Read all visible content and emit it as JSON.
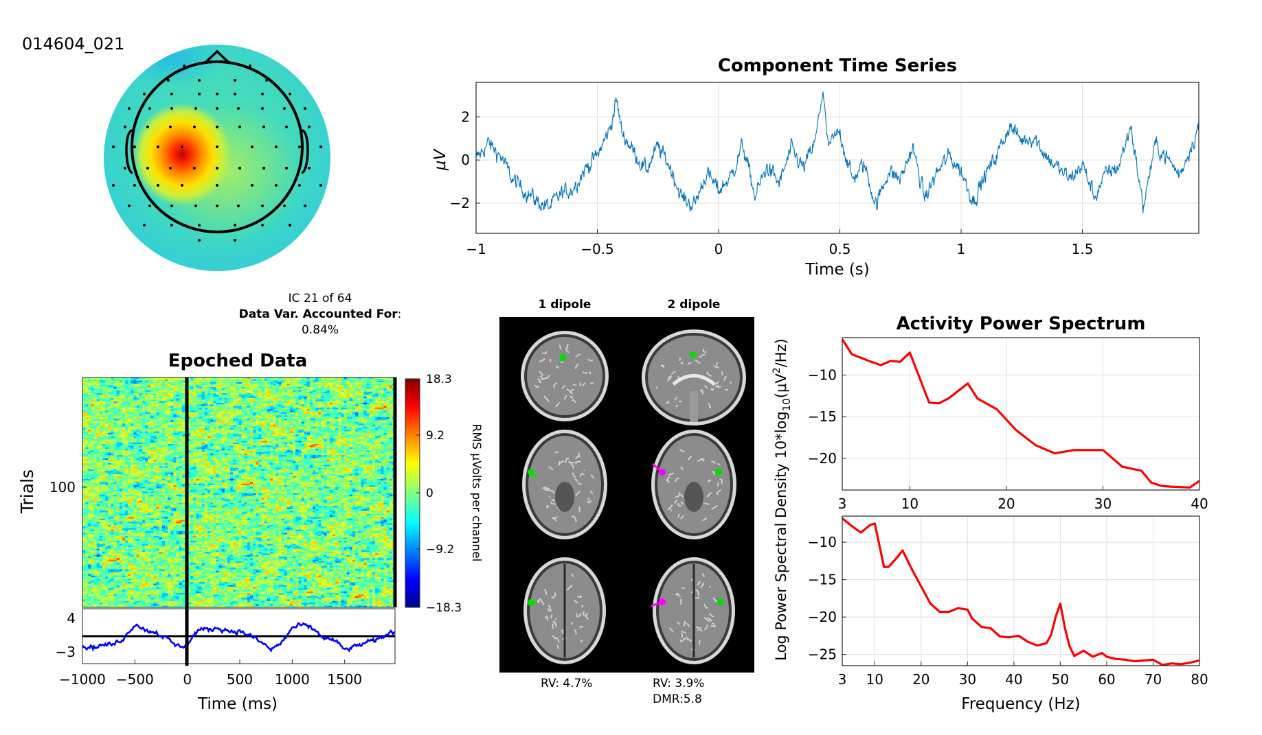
{
  "component_id": "014604_021",
  "ic_info": {
    "line1": "IC 21 of 64",
    "line2_bold": "Data Var. Accounted For",
    "line2_colon": ":",
    "line3": "0.84%"
  },
  "colors": {
    "time_series_line": "#0072bd",
    "erp_line": "#0000ff",
    "spectrum_line": "#ff0000",
    "dipole_1": "#00e000",
    "dipole_2": "#ff00ff"
  },
  "dipoles": {
    "col1_title": "1 dipole",
    "col2_title": "2 dipole",
    "rv1": "RV: 4.7%",
    "rv2": "RV: 3.9%",
    "dmr2": "DMR:5.8"
  },
  "shared_ylabel": "Log Power Spectral Density 10*log",
  "shared_ylabel_sub": "10",
  "shared_ylabel_tail_a": "(μV",
  "shared_ylabel_sup": "2",
  "shared_ylabel_tail_b": "/Hz)",
  "chart_data": [
    {
      "type": "line",
      "title": "Component Time Series",
      "xlabel": "Time (s)",
      "ylabel": "μV",
      "xlim": [
        -1,
        1.98
      ],
      "ylim": [
        -3.4,
        3.6
      ],
      "xticks": [
        -1,
        -0.5,
        0,
        0.5,
        1,
        1.5
      ],
      "xticklabels": [
        "−1",
        "−0.5",
        "0",
        "0.5",
        "1",
        "1.5"
      ],
      "yticks": [
        2,
        0,
        -2
      ],
      "yticklabels": [
        "2",
        "0",
        "−2"
      ],
      "grid": true,
      "x": [
        -1.0,
        -0.95,
        -0.9,
        -0.85,
        -0.8,
        -0.75,
        -0.7,
        -0.65,
        -0.6,
        -0.55,
        -0.5,
        -0.45,
        -0.42,
        -0.4,
        -0.35,
        -0.3,
        -0.25,
        -0.2,
        -0.15,
        -0.1,
        -0.05,
        0.0,
        0.05,
        0.1,
        0.15,
        0.2,
        0.25,
        0.3,
        0.35,
        0.4,
        0.43,
        0.45,
        0.5,
        0.55,
        0.6,
        0.65,
        0.7,
        0.75,
        0.8,
        0.85,
        0.9,
        0.95,
        1.0,
        1.05,
        1.1,
        1.15,
        1.2,
        1.25,
        1.3,
        1.35,
        1.4,
        1.45,
        1.5,
        1.55,
        1.6,
        1.65,
        1.7,
        1.75,
        1.8,
        1.85,
        1.9,
        1.95,
        1.98
      ],
      "y": [
        0.0,
        0.8,
        0.2,
        -0.9,
        -1.4,
        -1.9,
        -2.2,
        -1.6,
        -1.3,
        -0.4,
        0.2,
        1.4,
        2.8,
        1.3,
        0.4,
        -0.5,
        0.6,
        -0.3,
        -1.8,
        -2.1,
        -0.6,
        -1.4,
        -0.8,
        0.7,
        -1.7,
        -0.3,
        -1.1,
        0.5,
        -0.4,
        0.9,
        3.3,
        0.6,
        1.3,
        -0.9,
        -0.2,
        -2.1,
        -0.5,
        -0.9,
        0.6,
        -1.8,
        -0.6,
        0.2,
        -0.5,
        -1.9,
        -0.7,
        0.3,
        1.6,
        0.9,
        1.1,
        0.2,
        -0.4,
        -0.9,
        -0.2,
        -1.7,
        -0.6,
        -0.3,
        1.6,
        -2.2,
        0.7,
        0.1,
        -0.7,
        0.7,
        1.6
      ]
    },
    {
      "type": "heatmap",
      "title": "Epoched Data",
      "xlabel": "Time (ms)",
      "ylabel": "Trials",
      "xlim": [
        -1000,
        1980
      ],
      "xticks": [
        -1000,
        -500,
        0,
        500,
        1000,
        1500
      ],
      "xticklabels": [
        "−1000",
        "−500",
        "0",
        "500",
        "1000",
        "1500"
      ],
      "yticks": [
        100
      ],
      "yticklabels": [
        "100"
      ],
      "colorbar_label": "RMS μVolts per channel",
      "colorbar_ticks": [
        "18.3",
        "9.2",
        "0",
        "−9.2",
        "−18.3"
      ],
      "clim": [
        -18.3,
        18.3
      ],
      "erp": {
        "ylim": [
          -3,
          4
        ],
        "yticklabels": [
          "4",
          "−3"
        ],
        "x": [
          -1000,
          -900,
          -800,
          -700,
          -600,
          -500,
          -450,
          -400,
          -300,
          -200,
          -100,
          0,
          100,
          200,
          300,
          400,
          500,
          600,
          700,
          800,
          900,
          1000,
          1100,
          1200,
          1300,
          1400,
          1500,
          1600,
          1700,
          1800,
          1900,
          1980
        ],
        "y": [
          -1.2,
          -1.4,
          -1.0,
          -0.9,
          0.3,
          2.6,
          2.2,
          1.5,
          1.2,
          0.1,
          -1.2,
          -1.0,
          1.6,
          1.6,
          1.9,
          1.4,
          1.3,
          0.6,
          -0.5,
          -1.8,
          -0.6,
          1.9,
          2.4,
          1.7,
          0.2,
          -0.2,
          -1.8,
          -1.3,
          -0.6,
          -0.3,
          0.8,
          1.3
        ]
      }
    },
    {
      "type": "line",
      "title": "Activity Power Spectrum",
      "xlabel": "",
      "ylabel": "",
      "xlim": [
        3,
        40
      ],
      "ylim": [
        -23.8,
        -5.5
      ],
      "xticks": [
        3,
        10,
        20,
        30,
        40
      ],
      "xticklabels": [
        "3",
        "10",
        "20",
        "30",
        "40"
      ],
      "yticks": [
        -10,
        -15,
        -20
      ],
      "yticklabels": [
        "−10",
        "−15",
        "−20"
      ],
      "grid": true,
      "x": [
        3,
        4,
        6,
        7,
        8,
        9,
        10,
        12,
        13,
        14,
        16,
        17,
        19,
        21,
        23,
        25,
        27,
        30,
        32,
        34,
        35,
        36,
        37,
        39,
        40
      ],
      "y": [
        -5.7,
        -7.5,
        -8.4,
        -8.8,
        -8.3,
        -8.4,
        -7.3,
        -13.3,
        -13.4,
        -12.8,
        -11.0,
        -12.8,
        -14.1,
        -16.6,
        -18.4,
        -19.4,
        -19.0,
        -19.0,
        -21.0,
        -21.5,
        -22.9,
        -23.3,
        -23.4,
        -23.5,
        -22.7
      ]
    },
    {
      "type": "line",
      "title": "",
      "xlabel": "Frequency (Hz)",
      "ylabel": "",
      "xlim": [
        3,
        80
      ],
      "ylim": [
        -26.5,
        -6.5
      ],
      "xticks": [
        3,
        10,
        20,
        30,
        40,
        50,
        60,
        70,
        80
      ],
      "xticklabels": [
        "3",
        "10",
        "20",
        "30",
        "40",
        "50",
        "60",
        "70",
        "80"
      ],
      "yticks": [
        -10,
        -15,
        -20,
        -25
      ],
      "yticklabels": [
        "−10",
        "−15",
        "−20",
        "−25"
      ],
      "grid": true,
      "x": [
        3,
        5,
        7,
        9,
        10,
        12,
        13,
        15,
        16,
        18,
        20,
        22,
        24,
        26,
        28,
        30,
        31,
        33,
        35,
        37,
        39,
        41,
        43,
        45,
        47,
        48,
        49,
        50,
        51,
        52,
        53,
        55,
        57,
        59,
        60,
        62,
        64,
        66,
        68,
        70,
        72,
        74,
        76,
        78,
        80
      ],
      "y": [
        -6.8,
        -7.8,
        -8.7,
        -7.7,
        -7.5,
        -13.3,
        -13.3,
        -11.9,
        -11.1,
        -13.6,
        -15.9,
        -18.2,
        -19.3,
        -19.3,
        -18.8,
        -19.0,
        -20.2,
        -21.3,
        -21.5,
        -22.6,
        -22.7,
        -22.5,
        -23.3,
        -23.8,
        -23.5,
        -22.4,
        -20.0,
        -18.2,
        -21.5,
        -23.9,
        -25.2,
        -24.5,
        -25.3,
        -24.8,
        -25.3,
        -25.6,
        -25.7,
        -25.9,
        -25.8,
        -25.7,
        -26.4,
        -26.2,
        -26.3,
        -26.1,
        -25.8
      ]
    }
  ]
}
